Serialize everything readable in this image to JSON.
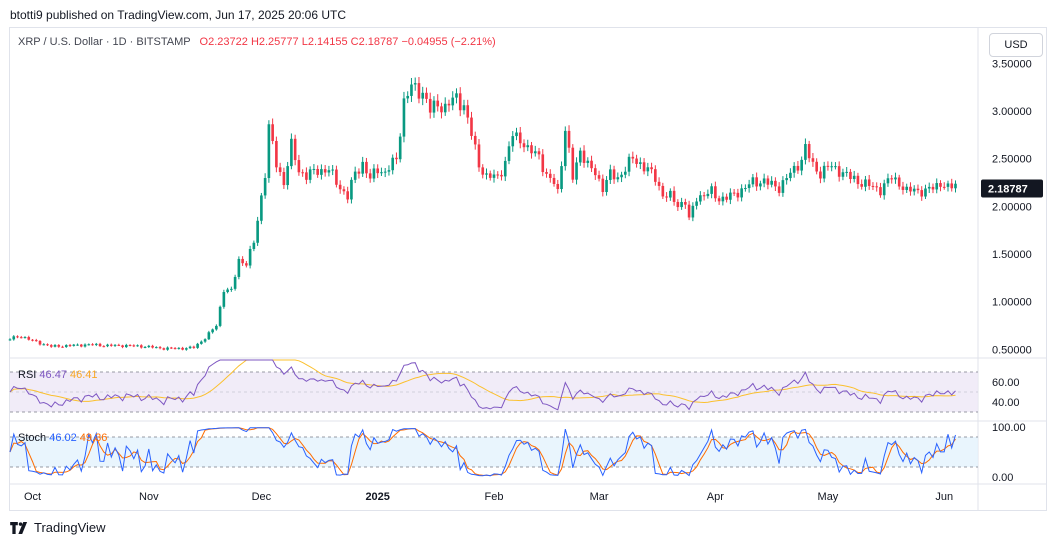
{
  "header": {
    "publisher_line": "btotti9 published on TradingView.com, Jun 17, 2025 20:06 UTC"
  },
  "legend": {
    "symbol": "XRP / U.S. Dollar · 1D · BITSTAMP",
    "open": "O2.23722",
    "high": "H2.25777",
    "low": "L2.14155",
    "close": "C2.18787",
    "change": "−0.04955 (−2.21%)"
  },
  "currency_button": "USD",
  "footer": {
    "brand": "TradingView"
  },
  "colors": {
    "up": "#089981",
    "down": "#f23645",
    "rsi": "#7e57c2",
    "rsi_ma": "#fbc02d",
    "stoch_k": "#2962ff",
    "stoch_d": "#ff6d00",
    "price_label_bg": "#131722"
  },
  "chart_data": {
    "type": "candlestick",
    "price_axis": {
      "ticks": [
        {
          "v": 3.5,
          "label": "3.50000"
        },
        {
          "v": 3.0,
          "label": "3.00000"
        },
        {
          "v": 2.5,
          "label": "2.50000"
        },
        {
          "v": 2.0,
          "label": "2.00000"
        },
        {
          "v": 1.5,
          "label": "1.50000"
        },
        {
          "v": 1.0,
          "label": "1.00000"
        },
        {
          "v": 0.5,
          "label": "0.50000"
        }
      ],
      "range": [
        0.42,
        3.85
      ],
      "last_price": 2.18787,
      "last_price_label": "2.18787"
    },
    "time_axis": {
      "labels": [
        {
          "label": "Oct",
          "day": 0
        },
        {
          "label": "Nov",
          "day": 31
        },
        {
          "label": "Dec",
          "day": 61
        },
        {
          "label": "2025",
          "day": 92,
          "bold": true
        },
        {
          "label": "Feb",
          "day": 123
        },
        {
          "label": "Mar",
          "day": 151
        },
        {
          "label": "Apr",
          "day": 182
        },
        {
          "label": "May",
          "day": 212
        },
        {
          "label": "Jun",
          "day": 243
        }
      ],
      "first_day_offset": -6,
      "total_days": 258
    },
    "close_anchors": [
      [
        -6,
        0.61
      ],
      [
        -3,
        0.64
      ],
      [
        0,
        0.59
      ],
      [
        5,
        0.53
      ],
      [
        10,
        0.54
      ],
      [
        15,
        0.55
      ],
      [
        20,
        0.54
      ],
      [
        25,
        0.54
      ],
      [
        30,
        0.53
      ],
      [
        35,
        0.51
      ],
      [
        40,
        0.51
      ],
      [
        43,
        0.52
      ],
      [
        46,
        0.62
      ],
      [
        49,
        0.75
      ],
      [
        51,
        1.13
      ],
      [
        53,
        1.11
      ],
      [
        55,
        1.44
      ],
      [
        57,
        1.4
      ],
      [
        59,
        1.62
      ],
      [
        62,
        2.35
      ],
      [
        63,
        2.82
      ],
      [
        65,
        2.45
      ],
      [
        67,
        2.25
      ],
      [
        69,
        2.63
      ],
      [
        71,
        2.38
      ],
      [
        73,
        2.32
      ],
      [
        76,
        2.38
      ],
      [
        79,
        2.38
      ],
      [
        82,
        2.2
      ],
      [
        84,
        2.1
      ],
      [
        86,
        2.35
      ],
      [
        88,
        2.45
      ],
      [
        90,
        2.28
      ],
      [
        92,
        2.4
      ],
      [
        94,
        2.35
      ],
      [
        97,
        2.5
      ],
      [
        99,
        3.1
      ],
      [
        101,
        3.25
      ],
      [
        104,
        3.2
      ],
      [
        106,
        3.0
      ],
      [
        108,
        3.08
      ],
      [
        110,
        3.03
      ],
      [
        113,
        3.15
      ],
      [
        115,
        3.05
      ],
      [
        117,
        2.75
      ],
      [
        119,
        2.45
      ],
      [
        121,
        2.3
      ],
      [
        124,
        2.32
      ],
      [
        126,
        2.45
      ],
      [
        128,
        2.75
      ],
      [
        130,
        2.72
      ],
      [
        132,
        2.58
      ],
      [
        135,
        2.55
      ],
      [
        137,
        2.3
      ],
      [
        139,
        2.25
      ],
      [
        140,
        2.16
      ],
      [
        142,
        2.8
      ],
      [
        144,
        2.3
      ],
      [
        146,
        2.6
      ],
      [
        148,
        2.42
      ],
      [
        150,
        2.35
      ],
      [
        152,
        2.2
      ],
      [
        154,
        2.33
      ],
      [
        156,
        2.3
      ],
      [
        158,
        2.4
      ],
      [
        160,
        2.5
      ],
      [
        162,
        2.45
      ],
      [
        164,
        2.38
      ],
      [
        166,
        2.3
      ],
      [
        168,
        2.12
      ],
      [
        170,
        2.1
      ],
      [
        172,
        2.02
      ],
      [
        174,
        2.05
      ],
      [
        175,
        1.85
      ],
      [
        177,
        2.1
      ],
      [
        179,
        2.12
      ],
      [
        181,
        2.15
      ],
      [
        183,
        2.08
      ],
      [
        186,
        2.1
      ],
      [
        188,
        2.15
      ],
      [
        190,
        2.2
      ],
      [
        192,
        2.25
      ],
      [
        195,
        2.27
      ],
      [
        197,
        2.22
      ],
      [
        199,
        2.2
      ],
      [
        201,
        2.3
      ],
      [
        203,
        2.38
      ],
      [
        205,
        2.5
      ],
      [
        206,
        2.62
      ],
      [
        208,
        2.42
      ],
      [
        210,
        2.35
      ],
      [
        212,
        2.42
      ],
      [
        215,
        2.38
      ],
      [
        218,
        2.3
      ],
      [
        221,
        2.25
      ],
      [
        224,
        2.2
      ],
      [
        226,
        2.18
      ],
      [
        229,
        2.3
      ],
      [
        231,
        2.25
      ],
      [
        233,
        2.15
      ],
      [
        235,
        2.18
      ],
      [
        238,
        2.15
      ],
      [
        240,
        2.2
      ],
      [
        242,
        2.25
      ],
      [
        244,
        2.18
      ],
      [
        246,
        2.23722
      ]
    ],
    "rsi": {
      "label": "RSI",
      "value": "46.47",
      "ma_value": "46.41",
      "ticks": [
        {
          "v": 60,
          "label": "60.00"
        },
        {
          "v": 40,
          "label": "40.00"
        }
      ],
      "bands": [
        70,
        30
      ],
      "range": [
        22,
        82
      ]
    },
    "stoch": {
      "label": "Stoch",
      "k_value": "46.02",
      "d_value": "49.36",
      "ticks": [
        {
          "v": 100,
          "label": "100.00"
        },
        {
          "v": 0,
          "label": "0.00"
        }
      ],
      "bands": [
        80,
        20
      ],
      "range": [
        -10,
        108
      ]
    }
  }
}
